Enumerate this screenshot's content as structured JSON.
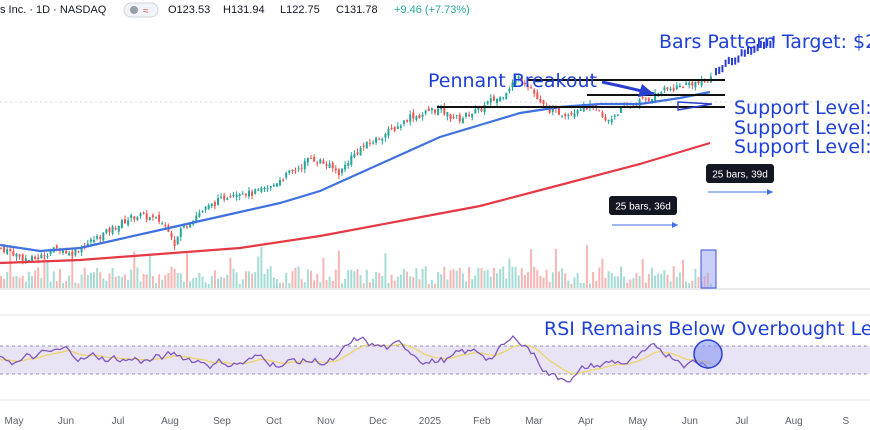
{
  "header": {
    "symbol_text": "s Inc. · 1D · NASDAQ",
    "open": "O123.53",
    "high": "H131.94",
    "low": "L122.75",
    "close": "C131.78",
    "change": "+9.46 (+7.73%)",
    "colors": {
      "up": "#26a69a",
      "down": "#ef5350",
      "text": "#131722"
    }
  },
  "annotations": {
    "pennant": "Pennant Breakout",
    "target": "Bars Pattern Target: $2",
    "support1": "Support Level:",
    "support2": "Support Level:",
    "support3": "Support Level:",
    "rsi": "RSI Remains Below Overbought Leve",
    "bars1": "25 bars, 36d",
    "bars2": "25 bars, 39d",
    "accent_color": "#1e3fd8"
  },
  "chart_data": [
    {
      "type": "candlestick",
      "x_axis_labels": [
        "May",
        "Jun",
        "Jul",
        "Aug",
        "Sep",
        "Oct",
        "Nov",
        "Dec",
        "2025",
        "Feb",
        "Mar",
        "Apr",
        "May",
        "Jun",
        "Jul",
        "Aug",
        "S"
      ],
      "ylim": [
        60,
        150
      ],
      "close_path": [
        [
          0,
          74
        ],
        [
          10,
          73
        ],
        [
          20,
          71
        ],
        [
          30,
          70
        ],
        [
          40,
          71
        ],
        [
          50,
          73
        ],
        [
          60,
          74
        ],
        [
          70,
          72
        ],
        [
          80,
          74
        ],
        [
          90,
          76
        ],
        [
          100,
          78
        ],
        [
          110,
          80
        ],
        [
          120,
          82
        ],
        [
          130,
          84
        ],
        [
          140,
          85
        ],
        [
          150,
          84
        ],
        [
          160,
          83
        ],
        [
          170,
          80
        ],
        [
          175,
          75
        ],
        [
          180,
          80
        ],
        [
          190,
          83
        ],
        [
          200,
          86
        ],
        [
          210,
          88
        ],
        [
          220,
          90
        ],
        [
          230,
          92
        ],
        [
          240,
          93
        ],
        [
          250,
          92
        ],
        [
          260,
          93
        ],
        [
          270,
          94
        ],
        [
          280,
          97
        ],
        [
          290,
          99
        ],
        [
          300,
          101
        ],
        [
          310,
          104
        ],
        [
          320,
          103
        ],
        [
          330,
          101
        ],
        [
          340,
          99
        ],
        [
          350,
          104
        ],
        [
          360,
          107
        ],
        [
          370,
          109
        ],
        [
          380,
          111
        ],
        [
          390,
          113
        ],
        [
          400,
          115
        ],
        [
          410,
          118
        ],
        [
          420,
          118
        ],
        [
          430,
          120
        ],
        [
          440,
          120
        ],
        [
          450,
          118
        ],
        [
          460,
          117
        ],
        [
          470,
          119
        ],
        [
          480,
          120
        ],
        [
          490,
          123
        ],
        [
          500,
          124
        ],
        [
          510,
          128
        ],
        [
          515,
          130
        ],
        [
          520,
          131
        ],
        [
          530,
          128
        ],
        [
          540,
          122
        ],
        [
          550,
          120
        ],
        [
          560,
          119
        ],
        [
          570,
          119
        ],
        [
          580,
          121
        ],
        [
          590,
          121
        ],
        [
          600,
          119
        ],
        [
          605,
          116
        ],
        [
          610,
          117
        ],
        [
          620,
          120
        ],
        [
          630,
          121
        ],
        [
          640,
          123
        ],
        [
          650,
          124
        ],
        [
          660,
          126
        ],
        [
          670,
          127
        ],
        [
          680,
          128
        ],
        [
          690,
          129
        ],
        [
          700,
          129
        ],
        [
          710,
          130
        ],
        [
          715,
          133
        ]
      ],
      "projection_path": [
        [
          715,
          133
        ],
        [
          730,
          136
        ],
        [
          745,
          139
        ],
        [
          760,
          141
        ],
        [
          775,
          143
        ]
      ],
      "ma50_path": [
        [
          0,
          75
        ],
        [
          40,
          73
        ],
        [
          80,
          74
        ],
        [
          120,
          77
        ],
        [
          160,
          80
        ],
        [
          200,
          83
        ],
        [
          240,
          86
        ],
        [
          280,
          89
        ],
        [
          320,
          93
        ],
        [
          360,
          99
        ],
        [
          400,
          105
        ],
        [
          440,
          111
        ],
        [
          480,
          115
        ],
        [
          520,
          119
        ],
        [
          560,
          121
        ],
        [
          600,
          122
        ],
        [
          640,
          122
        ],
        [
          680,
          124
        ],
        [
          710,
          126
        ]
      ],
      "ma200_path": [
        [
          0,
          69
        ],
        [
          80,
          70
        ],
        [
          160,
          72
        ],
        [
          240,
          74
        ],
        [
          320,
          78
        ],
        [
          400,
          83
        ],
        [
          480,
          88
        ],
        [
          560,
          95
        ],
        [
          640,
          102
        ],
        [
          710,
          109
        ]
      ],
      "support_levels": [
        {
          "value": 130,
          "x_from": 527,
          "x_to": 725
        },
        {
          "value": 125,
          "x_from": 587,
          "x_to": 725
        },
        {
          "value": 121,
          "x_from": 437,
          "x_to": 725
        }
      ]
    },
    {
      "type": "line",
      "name": "RSI",
      "ylim": [
        0,
        100
      ],
      "overbought": 70,
      "oversold": 30
    }
  ]
}
